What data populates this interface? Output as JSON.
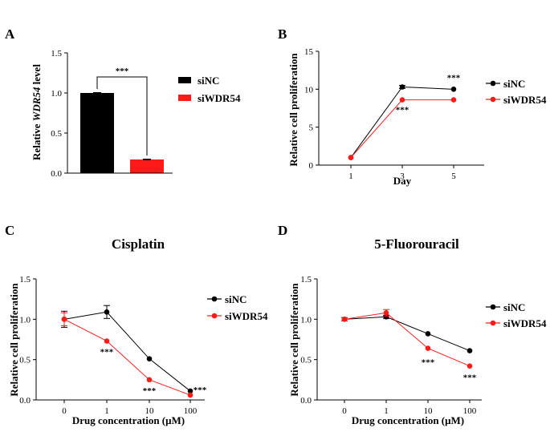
{
  "colors": {
    "siNC": "#000000",
    "siWDR54": "#ff1a1a",
    "axis": "#000000"
  },
  "chart_data": [
    {
      "panel": "A",
      "type": "bar",
      "title": "",
      "xlabel": "",
      "ylabel_pre": "Relative ",
      "ylabel_em": "WDR54",
      "ylabel_post": " level",
      "ylim": [
        0,
        1.5
      ],
      "yticks": [
        "0.0",
        "0.5",
        "1.0",
        "1.5"
      ],
      "categories": [
        "siNC",
        "siWDR54"
      ],
      "values": [
        1.0,
        0.17
      ],
      "errors": [
        0.005,
        0.005
      ],
      "significance": "***",
      "legend": [
        "siNC",
        "siWDR54"
      ]
    },
    {
      "panel": "B",
      "type": "line",
      "title": "",
      "xlabel": "Day",
      "ylabel": "Relative cell proliferation",
      "ylim": [
        0,
        15
      ],
      "yticks": [
        "0",
        "5",
        "10",
        "15"
      ],
      "x": [
        "1",
        "3",
        "5"
      ],
      "series": [
        {
          "name": "siNC",
          "values": [
            1.0,
            10.3,
            10.0
          ],
          "errors": [
            0.05,
            0.2,
            0.15
          ]
        },
        {
          "name": "siWDR54",
          "values": [
            1.0,
            8.6,
            8.6
          ],
          "errors": [
            0.05,
            0.15,
            0.1
          ]
        }
      ],
      "significance": [
        "",
        "***",
        "***"
      ],
      "legend": [
        "siNC",
        "siWDR54"
      ]
    },
    {
      "panel": "C",
      "type": "line",
      "title": "Cisplatin",
      "xlabel": "Drug concentration (μM)",
      "ylabel": "Relative cell proliferation",
      "ylim": [
        0,
        1.5
      ],
      "yticks": [
        "0.0",
        "0.5",
        "1.0",
        "1.5"
      ],
      "x": [
        "0",
        "1",
        "10",
        "100"
      ],
      "series": [
        {
          "name": "siNC",
          "values": [
            1.0,
            1.09,
            0.51,
            0.11
          ],
          "errors": [
            0.1,
            0.08,
            0.01,
            0.01
          ]
        },
        {
          "name": "siWDR54",
          "values": [
            1.0,
            0.73,
            0.25,
            0.06
          ],
          "errors": [
            0.08,
            0.01,
            0.01,
            0.01
          ]
        }
      ],
      "significance": [
        "",
        "***",
        "***",
        "***"
      ],
      "legend": [
        "siNC",
        "siWDR54"
      ]
    },
    {
      "panel": "D",
      "type": "line",
      "title": "5-Fluorouracil",
      "xlabel": "Drug concentration (μM)",
      "ylabel": "Relative cell proliferation",
      "ylim": [
        0,
        1.5
      ],
      "yticks": [
        "0.0",
        "0.5",
        "1.0",
        "1.5"
      ],
      "x": [
        "0",
        "1",
        "10",
        "100"
      ],
      "series": [
        {
          "name": "siNC",
          "values": [
            1.0,
            1.03,
            0.82,
            0.61
          ],
          "errors": [
            0.02,
            0.02,
            0.01,
            0.01
          ]
        },
        {
          "name": "siWDR54",
          "values": [
            1.0,
            1.08,
            0.64,
            0.42
          ],
          "errors": [
            0.02,
            0.04,
            0.01,
            0.01
          ]
        }
      ],
      "significance": [
        "",
        "",
        "***",
        "***"
      ],
      "legend": [
        "siNC",
        "siWDR54"
      ]
    }
  ]
}
